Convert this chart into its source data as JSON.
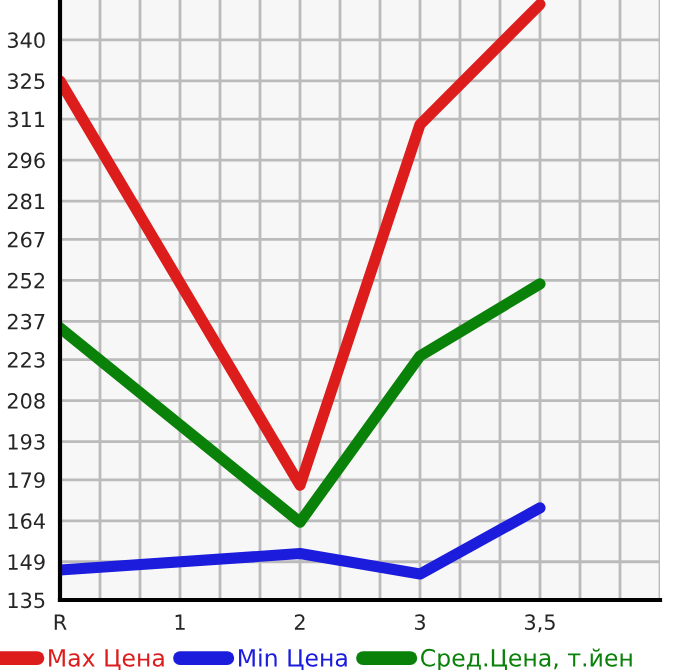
{
  "chart_data": {
    "type": "line",
    "categories": [
      "R",
      "1",
      "2",
      "3",
      "3,5"
    ],
    "series": [
      {
        "name": "Max Цена",
        "color": "#dd1c1c",
        "values": [
          325,
          null,
          177,
          309,
          353
        ]
      },
      {
        "name": "Min Цена",
        "color": "#1c1cdd",
        "values": [
          146,
          null,
          152,
          144.5,
          168.7
        ]
      },
      {
        "name": "Сред.Цена, т.йен",
        "color": "#0a820a",
        "values": [
          234.6,
          null,
          163.5,
          224.3,
          250.7
        ]
      }
    ],
    "ylim": [
      135,
      354.6
    ],
    "yticks": [
      135,
      149,
      164,
      179,
      193,
      208,
      223,
      237,
      252,
      267,
      281,
      296,
      311,
      325,
      340
    ],
    "grid": true,
    "legend": "bottom",
    "marker": "none",
    "line_style": "solid"
  }
}
